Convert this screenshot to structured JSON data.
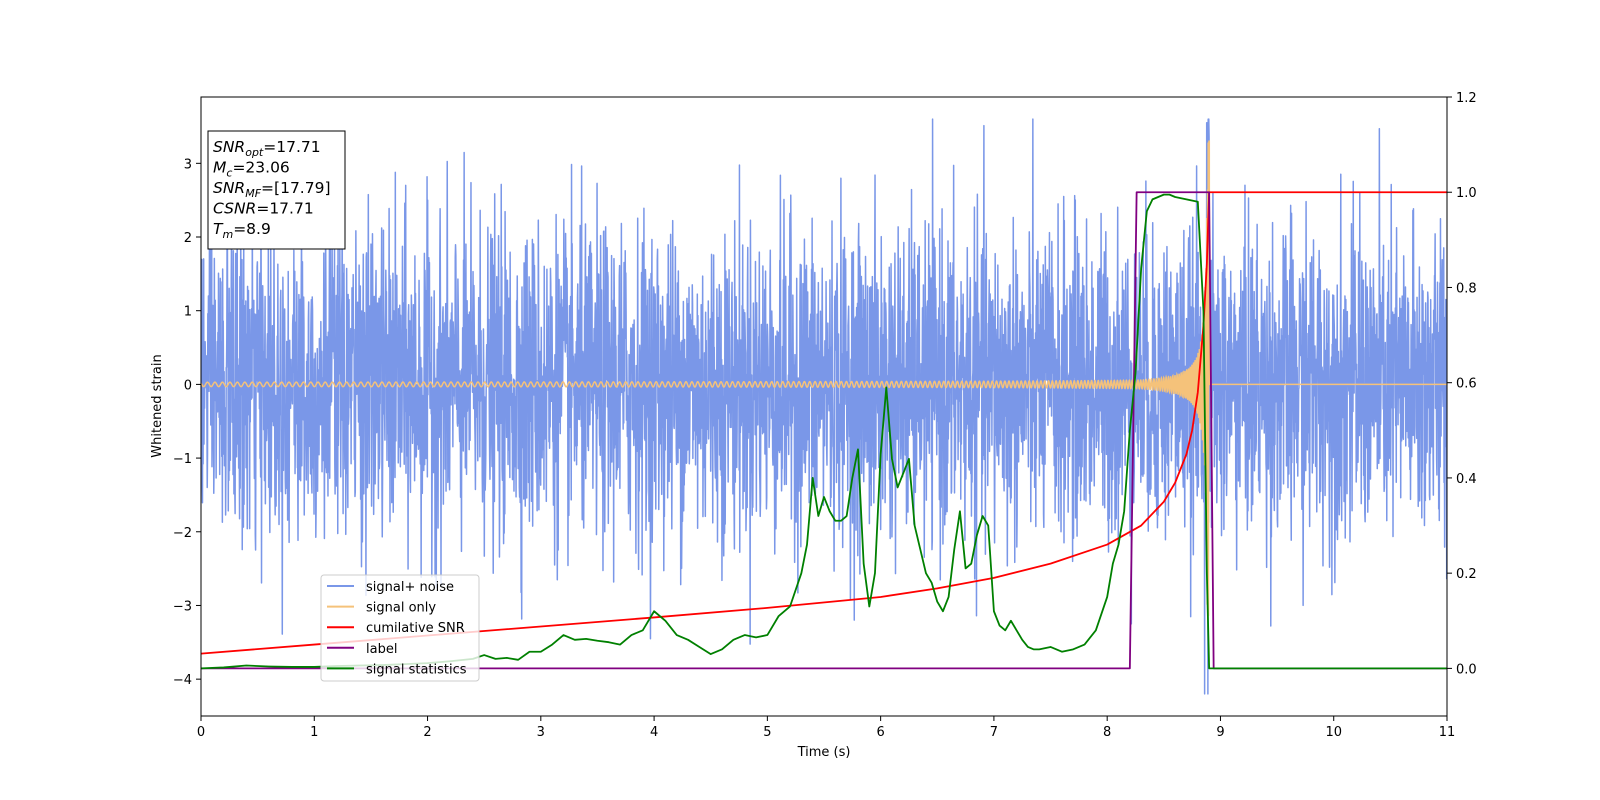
{
  "chart_data": {
    "type": "line",
    "title": "",
    "xlabel": "Time (s)",
    "ylabel": "Whitened strain",
    "y2label": "",
    "xlim": [
      0,
      11
    ],
    "ylim": [
      -4.5,
      3.9
    ],
    "y2lim": [
      -0.1,
      1.2
    ],
    "x_ticks": [
      "0",
      "1",
      "2",
      "3",
      "4",
      "5",
      "6",
      "7",
      "8",
      "9",
      "10",
      "11"
    ],
    "y_ticks": [
      "−4",
      "−3",
      "−2",
      "−1",
      "0",
      "1",
      "2",
      "3"
    ],
    "y2_ticks": [
      "0.0",
      "0.2",
      "0.4",
      "0.6",
      "0.8",
      "1.0",
      "1.2"
    ],
    "grid": false,
    "legend_position": "lower-left",
    "info_box": [
      {
        "base": "SNR",
        "sub": "opt",
        "value": "=17.71"
      },
      {
        "base": "M",
        "sub": "c",
        "value": "=23.06"
      },
      {
        "base": "SNR",
        "sub": "MF",
        "value": "=[17.79]"
      },
      {
        "base": "CSNR",
        "sub": "",
        "value": "=17.71"
      },
      {
        "base": "T",
        "sub": "m",
        "value": "=8.9"
      }
    ],
    "series": [
      {
        "name": "signal+ noise",
        "axis": "left",
        "color": "#7a97e8",
        "kind": "noise",
        "noise_std": 1.05,
        "peak": {
          "x": 8.88,
          "y": 3.55
        }
      },
      {
        "name": "signal only",
        "axis": "left",
        "color": "#f5c27a",
        "kind": "chirp",
        "start_amplitude": 0.03,
        "peak": {
          "x": 8.9,
          "y": 3.3
        },
        "merger_time": 8.9
      },
      {
        "name": "cumilative SNR",
        "axis": "right",
        "color": "#ff0000",
        "x": [
          0,
          1,
          2,
          3,
          4,
          5,
          6,
          6.5,
          7,
          7.5,
          8,
          8.3,
          8.5,
          8.6,
          8.7,
          8.75,
          8.8,
          8.85,
          8.88,
          8.9,
          8.91,
          11
        ],
        "y": [
          0.031,
          0.05,
          0.069,
          0.088,
          0.107,
          0.127,
          0.15,
          0.168,
          0.19,
          0.22,
          0.26,
          0.3,
          0.35,
          0.39,
          0.45,
          0.5,
          0.58,
          0.72,
          0.85,
          1.0,
          1.0,
          1.0
        ]
      },
      {
        "name": "label",
        "axis": "right",
        "color": "#800080",
        "x": [
          0,
          8.2,
          8.26,
          8.9,
          8.94,
          11
        ],
        "y": [
          0.0,
          0.0,
          1.0,
          1.0,
          0.0,
          0.0
        ]
      },
      {
        "name": "signal statistics",
        "axis": "right",
        "color": "#008000",
        "x": [
          0,
          0.2,
          0.4,
          0.6,
          0.8,
          1.0,
          1.2,
          1.4,
          1.6,
          1.8,
          2.0,
          2.2,
          2.4,
          2.5,
          2.6,
          2.7,
          2.8,
          2.9,
          3.0,
          3.1,
          3.2,
          3.3,
          3.4,
          3.5,
          3.6,
          3.7,
          3.8,
          3.9,
          4.0,
          4.1,
          4.2,
          4.3,
          4.4,
          4.5,
          4.6,
          4.7,
          4.8,
          4.9,
          5.0,
          5.1,
          5.2,
          5.3,
          5.35,
          5.4,
          5.45,
          5.5,
          5.55,
          5.6,
          5.65,
          5.7,
          5.75,
          5.8,
          5.85,
          5.9,
          5.95,
          6.0,
          6.05,
          6.1,
          6.15,
          6.2,
          6.25,
          6.3,
          6.35,
          6.4,
          6.45,
          6.5,
          6.55,
          6.6,
          6.65,
          6.7,
          6.75,
          6.8,
          6.85,
          6.9,
          6.95,
          7.0,
          7.05,
          7.1,
          7.15,
          7.2,
          7.25,
          7.3,
          7.35,
          7.4,
          7.5,
          7.6,
          7.7,
          7.8,
          7.9,
          8.0,
          8.05,
          8.1,
          8.15,
          8.2,
          8.25,
          8.3,
          8.35,
          8.4,
          8.45,
          8.5,
          8.55,
          8.6,
          8.7,
          8.8,
          8.85,
          8.88,
          8.9,
          8.95,
          9.0,
          9.2,
          9.5,
          10.0,
          11.0
        ],
        "y": [
          0.0,
          0.002,
          0.006,
          0.004,
          0.003,
          0.003,
          0.005,
          0.006,
          0.007,
          0.009,
          0.011,
          0.015,
          0.02,
          0.028,
          0.02,
          0.022,
          0.018,
          0.035,
          0.035,
          0.05,
          0.07,
          0.06,
          0.062,
          0.058,
          0.055,
          0.05,
          0.07,
          0.08,
          0.12,
          0.1,
          0.07,
          0.06,
          0.045,
          0.03,
          0.04,
          0.06,
          0.07,
          0.065,
          0.07,
          0.11,
          0.13,
          0.2,
          0.26,
          0.4,
          0.32,
          0.36,
          0.33,
          0.31,
          0.31,
          0.32,
          0.4,
          0.46,
          0.22,
          0.13,
          0.2,
          0.45,
          0.59,
          0.44,
          0.38,
          0.41,
          0.44,
          0.3,
          0.25,
          0.2,
          0.18,
          0.14,
          0.12,
          0.15,
          0.25,
          0.33,
          0.21,
          0.22,
          0.28,
          0.32,
          0.3,
          0.12,
          0.09,
          0.08,
          0.1,
          0.08,
          0.06,
          0.045,
          0.04,
          0.04,
          0.045,
          0.035,
          0.04,
          0.05,
          0.08,
          0.15,
          0.22,
          0.26,
          0.33,
          0.5,
          0.62,
          0.84,
          0.96,
          0.985,
          0.99,
          0.995,
          0.995,
          0.99,
          0.985,
          0.98,
          0.75,
          0.2,
          0.0,
          0.0,
          0.0,
          0.0,
          0.0,
          0.0,
          0.0
        ]
      }
    ]
  }
}
